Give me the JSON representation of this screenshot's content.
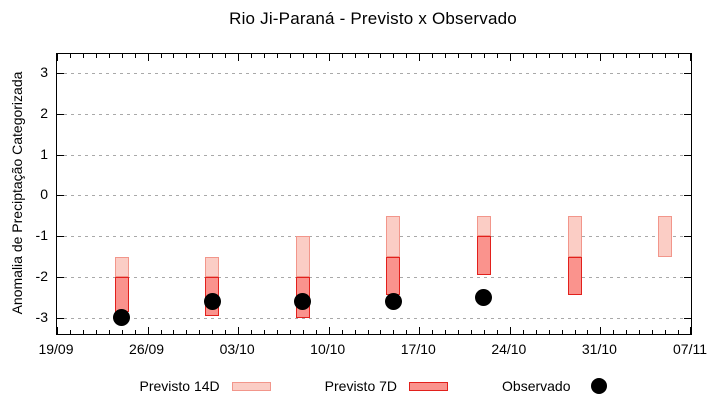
{
  "colors": {
    "previsto14_fill": "#FBCDC5",
    "previsto14_border": "#F2968B",
    "previsto7_fill": "#FA938D",
    "previsto7_border": "#E2201C",
    "observado": "#000000",
    "grid": "#A9A9A9",
    "axis": "#000000"
  },
  "chart_data": {
    "type": "range-bar",
    "title": "Rio Ji-Paraná - Previsto x Observado",
    "ylabel": "Anomalia de Preciptação Categorizada",
    "xlabel": "",
    "grid": "horizontal-dashed",
    "legend_position": "bottom",
    "x_axis": {
      "tick_labels": [
        "19/09",
        "26/09",
        "03/10",
        "10/10",
        "17/10",
        "24/10",
        "31/10",
        "07/11"
      ],
      "tick_days": [
        0,
        7,
        14,
        21,
        28,
        35,
        42,
        49
      ],
      "total_days": 49,
      "minor_tick_every_days": 1
    },
    "y_axis": {
      "min": -3.4,
      "max": 3.47,
      "ticks": [
        3,
        2,
        1,
        0,
        -1,
        -2,
        -3
      ]
    },
    "series": [
      {
        "name": "Previsto 14D",
        "type": "range",
        "fill": "#FBCDC5",
        "border": "#F2968B",
        "points": [
          {
            "date": "24/09",
            "day": 5,
            "hi": -1.5,
            "lo": -2.0
          },
          {
            "date": "01/10",
            "day": 12,
            "hi": -1.5,
            "lo": -2.0
          },
          {
            "date": "08/10",
            "day": 19,
            "hi": -1.0,
            "lo": -2.0
          },
          {
            "date": "15/10",
            "day": 26,
            "hi": -0.5,
            "lo": -1.5
          },
          {
            "date": "22/10",
            "day": 33,
            "hi": -0.5,
            "lo": -1.0
          },
          {
            "date": "29/10",
            "day": 40,
            "hi": -0.5,
            "lo": -1.5
          },
          {
            "date": "05/11",
            "day": 47,
            "hi": -0.5,
            "lo": -1.5
          }
        ]
      },
      {
        "name": "Previsto 7D",
        "type": "range",
        "fill": "#FA938D",
        "border": "#E2201C",
        "points": [
          {
            "date": "24/09",
            "day": 5,
            "hi": -2.0,
            "lo": -2.85
          },
          {
            "date": "01/10",
            "day": 12,
            "hi": -2.0,
            "lo": -2.95
          },
          {
            "date": "08/10",
            "day": 19,
            "hi": -2.0,
            "lo": -3.0
          },
          {
            "date": "15/10",
            "day": 26,
            "hi": -1.5,
            "lo": -2.45
          },
          {
            "date": "22/10",
            "day": 33,
            "hi": -1.0,
            "lo": -1.95
          },
          {
            "date": "29/10",
            "day": 40,
            "hi": -1.5,
            "lo": -2.45
          }
        ]
      },
      {
        "name": "Observado",
        "type": "point",
        "color": "#000000",
        "points": [
          {
            "date": "24/09",
            "day": 5,
            "value": -3.0
          },
          {
            "date": "01/10",
            "day": 12,
            "value": -2.6
          },
          {
            "date": "08/10",
            "day": 19,
            "value": -2.6
          },
          {
            "date": "15/10",
            "day": 26,
            "value": -2.6
          },
          {
            "date": "22/10",
            "day": 33,
            "value": -2.5
          }
        ]
      }
    ]
  },
  "legend": {
    "items": [
      {
        "label": "Previsto 14D",
        "swatch": "light-box"
      },
      {
        "label": "Previsto 7D",
        "swatch": "dark-box"
      },
      {
        "label": "Observado",
        "swatch": "black-dot"
      }
    ]
  }
}
